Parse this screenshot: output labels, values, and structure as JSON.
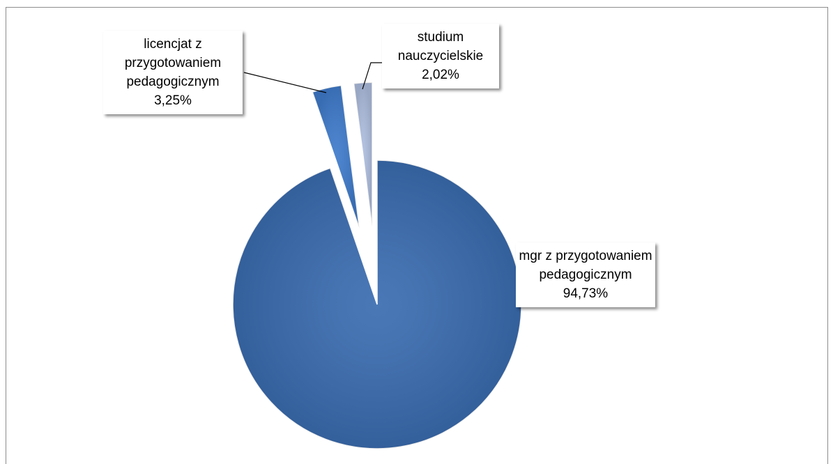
{
  "chart_data": {
    "type": "pie",
    "categories": [
      "mgr z przygotowaniem pedagogicznym",
      "licencjat z przygotowaniem pedagogicznym",
      "studium nauczycielskie"
    ],
    "values": [
      94.73,
      3.25,
      2.02
    ],
    "value_labels": [
      "94,73%",
      "3,25%",
      "2,02%"
    ],
    "colors": [
      "#3a6cb0",
      "#3f7bcb",
      "#aebedf"
    ]
  }
}
